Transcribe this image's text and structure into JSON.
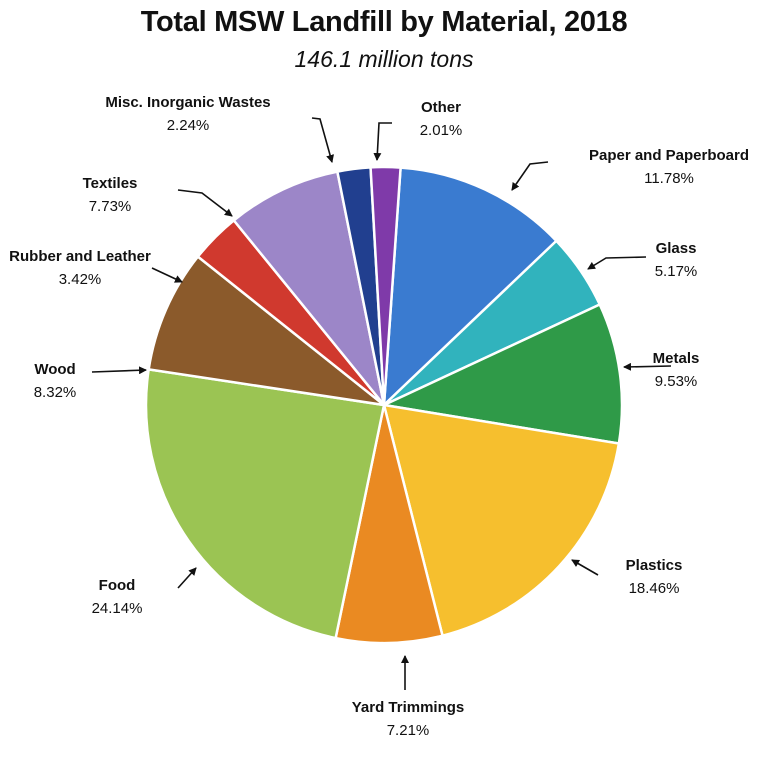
{
  "chart_data": {
    "type": "pie",
    "title": "Total MSW Landfill by Material, 2018",
    "subtitle": "146.1 million tons",
    "slices": [
      {
        "name": "Paper and Paperboard",
        "value": 11.78,
        "label": "11.78%",
        "color": "#3a7bd0"
      },
      {
        "name": "Glass",
        "value": 5.17,
        "label": "5.17%",
        "color": "#31b3bd"
      },
      {
        "name": "Metals",
        "value": 9.53,
        "label": "9.53%",
        "color": "#2f9a48"
      },
      {
        "name": "Plastics",
        "value": 18.46,
        "label": "18.46%",
        "color": "#f6bf2e"
      },
      {
        "name": "Yard Trimmings",
        "value": 7.21,
        "label": "7.21%",
        "color": "#ea8a22"
      },
      {
        "name": "Food",
        "value": 24.14,
        "label": "24.14%",
        "color": "#9bc453"
      },
      {
        "name": "Wood",
        "value": 8.32,
        "label": "8.32%",
        "color": "#8b5a2b"
      },
      {
        "name": "Rubber and Leather",
        "value": 3.42,
        "label": "3.42%",
        "color": "#d0392e"
      },
      {
        "name": "Textiles",
        "value": 7.73,
        "label": "7.73%",
        "color": "#9c86c8"
      },
      {
        "name": "Misc. Inorganic Wastes",
        "value": 2.24,
        "label": "2.24%",
        "color": "#213f8f"
      },
      {
        "name": "Other",
        "value": 2.01,
        "label": "2.01%",
        "color": "#7f3aa9"
      }
    ]
  }
}
